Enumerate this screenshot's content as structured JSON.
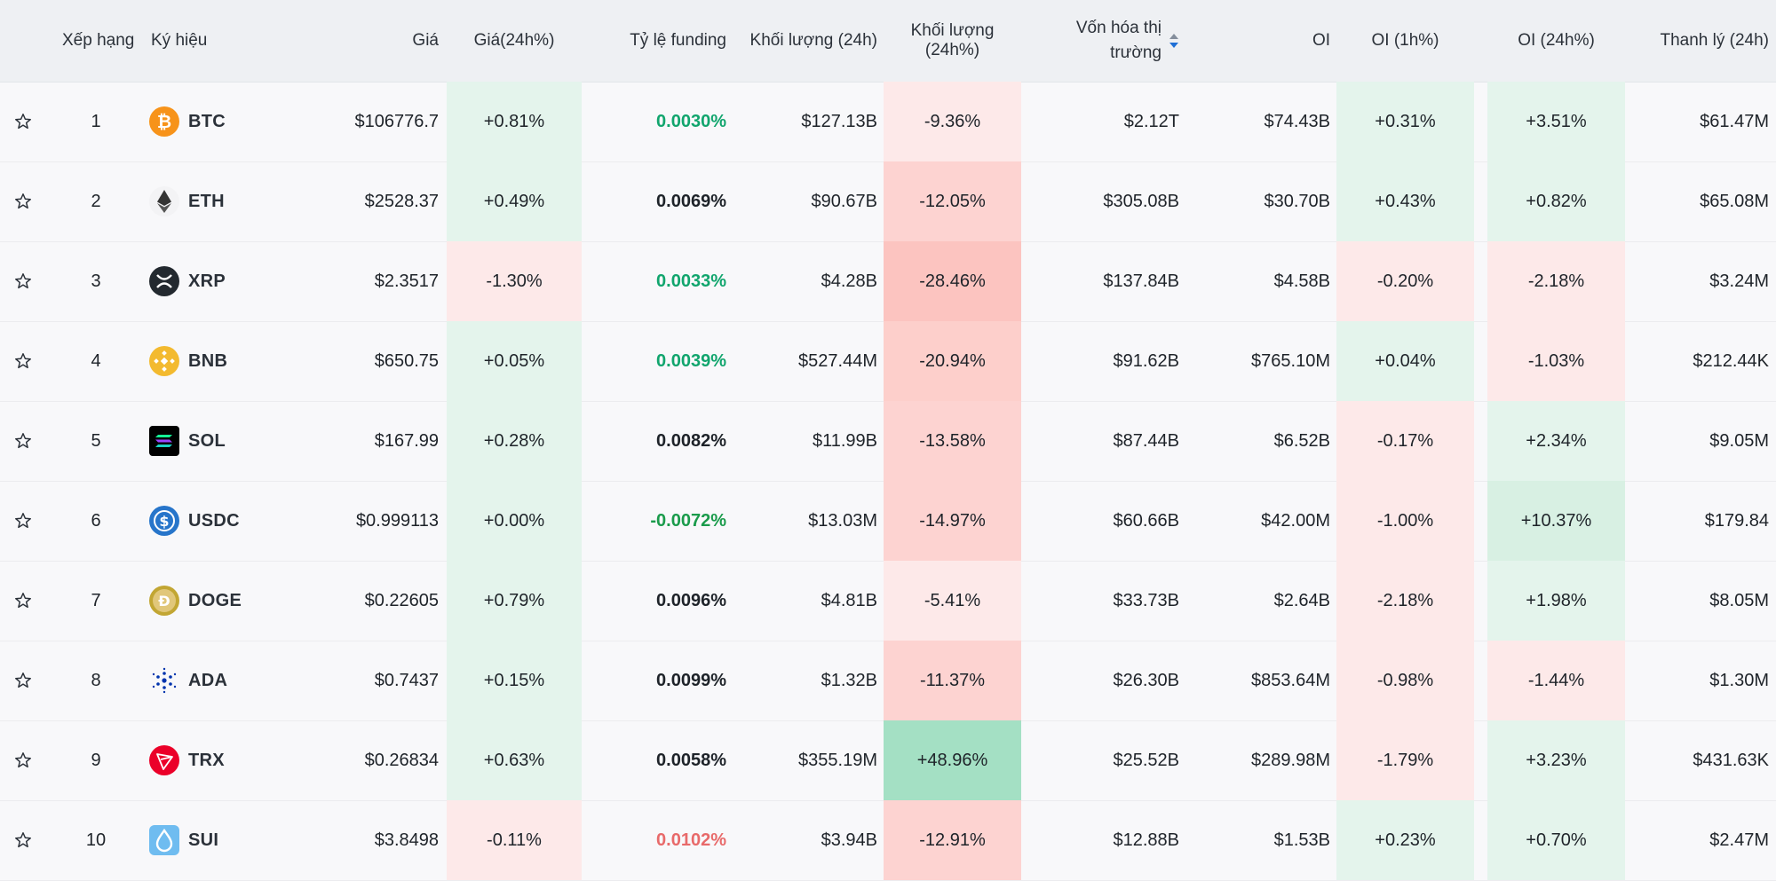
{
  "colors": {
    "positive_bg": "#e4f4ec",
    "negative_bg_light": "#fde9e9",
    "negative_bg_mid": "#fdd3d1",
    "negative_bg_strong": "#fcc4c0",
    "positive_bg_strong": "#a4e0c4",
    "header_bg": "#eef0f3",
    "accent_blue": "#1f6fd6"
  },
  "header": {
    "rank": "Xếp hạng",
    "symbol": "Ký hiệu",
    "price": "Giá",
    "price_change": "Giá(24h%)",
    "funding": "Tỷ lệ funding",
    "volume": "Khối lượng (24h)",
    "volume_change": "Khối lượng (24h%)",
    "mcap": "Vốn hóa thị\ntrường",
    "oi": "OI",
    "oi_1h": "OI (1h%)",
    "oi_24h": "OI (24h%)",
    "liq": "Thanh lý (24h)"
  },
  "rows": [
    {
      "rank": "1",
      "symbol": "BTC",
      "icon": "bitcoin-icon",
      "price": "$106776.7",
      "price_change": "+0.81%",
      "funding": "0.0030%",
      "volume": "$127.13B",
      "volume_change": "-9.36%",
      "mcap": "$2.12T",
      "oi": "$74.43B",
      "oi_1h": "+0.31%",
      "oi_24h": "+3.51%",
      "liq": "$61.47M"
    },
    {
      "rank": "2",
      "symbol": "ETH",
      "icon": "ethereum-icon",
      "price": "$2528.37",
      "price_change": "+0.49%",
      "funding": "0.0069%",
      "volume": "$90.67B",
      "volume_change": "-12.05%",
      "mcap": "$305.08B",
      "oi": "$30.70B",
      "oi_1h": "+0.43%",
      "oi_24h": "+0.82%",
      "liq": "$65.08M"
    },
    {
      "rank": "3",
      "symbol": "XRP",
      "icon": "xrp-icon",
      "price": "$2.3517",
      "price_change": "-1.30%",
      "funding": "0.0033%",
      "volume": "$4.28B",
      "volume_change": "-28.46%",
      "mcap": "$137.84B",
      "oi": "$4.58B",
      "oi_1h": "-0.20%",
      "oi_24h": "-2.18%",
      "liq": "$3.24M"
    },
    {
      "rank": "4",
      "symbol": "BNB",
      "icon": "bnb-icon",
      "price": "$650.75",
      "price_change": "+0.05%",
      "funding": "0.0039%",
      "volume": "$527.44M",
      "volume_change": "-20.94%",
      "mcap": "$91.62B",
      "oi": "$765.10M",
      "oi_1h": "+0.04%",
      "oi_24h": "-1.03%",
      "liq": "$212.44K"
    },
    {
      "rank": "5",
      "symbol": "SOL",
      "icon": "solana-icon",
      "price": "$167.99",
      "price_change": "+0.28%",
      "funding": "0.0082%",
      "volume": "$11.99B",
      "volume_change": "-13.58%",
      "mcap": "$87.44B",
      "oi": "$6.52B",
      "oi_1h": "-0.17%",
      "oi_24h": "+2.34%",
      "liq": "$9.05M"
    },
    {
      "rank": "6",
      "symbol": "USDC",
      "icon": "usdc-icon",
      "price": "$0.999113",
      "price_change": "+0.00%",
      "funding": "-0.0072%",
      "volume": "$13.03M",
      "volume_change": "-14.97%",
      "mcap": "$60.66B",
      "oi": "$42.00M",
      "oi_1h": "-1.00%",
      "oi_24h": "+10.37%",
      "liq": "$179.84"
    },
    {
      "rank": "7",
      "symbol": "DOGE",
      "icon": "dogecoin-icon",
      "price": "$0.22605",
      "price_change": "+0.79%",
      "funding": "0.0096%",
      "volume": "$4.81B",
      "volume_change": "-5.41%",
      "mcap": "$33.73B",
      "oi": "$2.64B",
      "oi_1h": "-2.18%",
      "oi_24h": "+1.98%",
      "liq": "$8.05M"
    },
    {
      "rank": "8",
      "symbol": "ADA",
      "icon": "cardano-icon",
      "price": "$0.7437",
      "price_change": "+0.15%",
      "funding": "0.0099%",
      "volume": "$1.32B",
      "volume_change": "-11.37%",
      "mcap": "$26.30B",
      "oi": "$853.64M",
      "oi_1h": "-0.98%",
      "oi_24h": "-1.44%",
      "liq": "$1.30M"
    },
    {
      "rank": "9",
      "symbol": "TRX",
      "icon": "tron-icon",
      "price": "$0.26834",
      "price_change": "+0.63%",
      "funding": "0.0058%",
      "volume": "$355.19M",
      "volume_change": "+48.96%",
      "mcap": "$25.52B",
      "oi": "$289.98M",
      "oi_1h": "-1.79%",
      "oi_24h": "+3.23%",
      "liq": "$431.63K"
    },
    {
      "rank": "10",
      "symbol": "SUI",
      "icon": "sui-icon",
      "price": "$3.8498",
      "price_change": "-0.11%",
      "funding": "0.0102%",
      "volume": "$3.94B",
      "volume_change": "-12.91%",
      "mcap": "$12.88B",
      "oi": "$1.53B",
      "oi_1h": "+0.23%",
      "oi_24h": "+0.70%",
      "liq": "$2.47M"
    }
  ]
}
